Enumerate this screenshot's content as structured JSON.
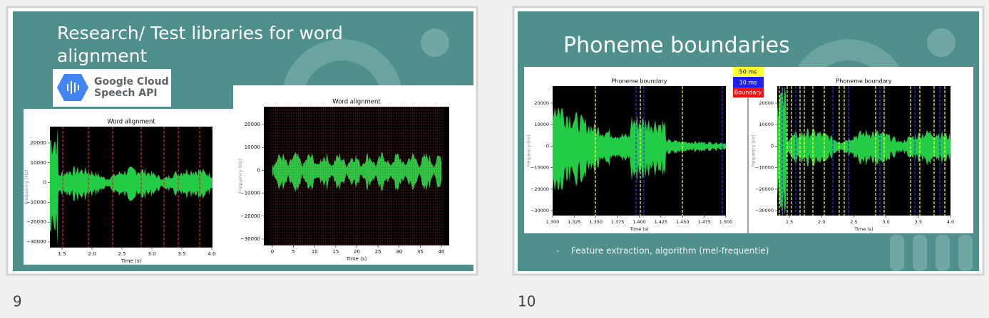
{
  "slides": [
    {
      "number": "9",
      "title_lines": [
        "Research/ Test libraries for word",
        "alignment"
      ],
      "logo": {
        "line1": "Google Cloud",
        "line2": "Speech API"
      },
      "charts": [
        {
          "title": "Word alignment",
          "x_label": "Time (s)",
          "y_label": "Frequency (Hz)",
          "x_ticks": [
            "1.5",
            "2.0",
            "2.5",
            "3.0",
            "3.5",
            "4.0"
          ],
          "y_ticks": [
            "20000",
            "10000",
            "0",
            "−10000",
            "−20000",
            "−30000"
          ]
        },
        {
          "title": "Word alignment",
          "x_label": "Time (s)",
          "y_label": "Frequency (Hz)",
          "x_ticks": [
            "0",
            "5",
            "10",
            "15",
            "20",
            "25",
            "30",
            "35",
            "40"
          ],
          "y_ticks": [
            "20000",
            "10000",
            "0",
            "−10000",
            "−20000",
            "−30000"
          ]
        }
      ]
    },
    {
      "number": "10",
      "title": "Phoneme boundaries",
      "legend": [
        "50 ms",
        "10 ms",
        "Boundary"
      ],
      "charts": [
        {
          "title": "Phoneme boundary",
          "x_label": "Time (s)",
          "y_label": "Frequency (Hz)",
          "x_ticks": [
            "1.300",
            "1.325",
            "1.350",
            "1.375",
            "1.400",
            "1.425",
            "1.450",
            "1.475",
            "1.500"
          ],
          "y_ticks": [
            "20000",
            "10000",
            "0",
            "−10000",
            "−20000",
            "−30000"
          ]
        },
        {
          "title": "Phoneme boundary",
          "x_label": "Time (s)",
          "y_label": "Frequency (Hz)",
          "x_ticks": [
            "1.5",
            "2.0",
            "2.5",
            "3.0",
            "3.5",
            "4.0"
          ],
          "y_ticks": [
            "20000",
            "10000",
            "0",
            "−10000",
            "−20000",
            "−30000"
          ]
        }
      ],
      "bullet": "Feature extraction, algorithm (mel-frequentie)"
    }
  ]
}
